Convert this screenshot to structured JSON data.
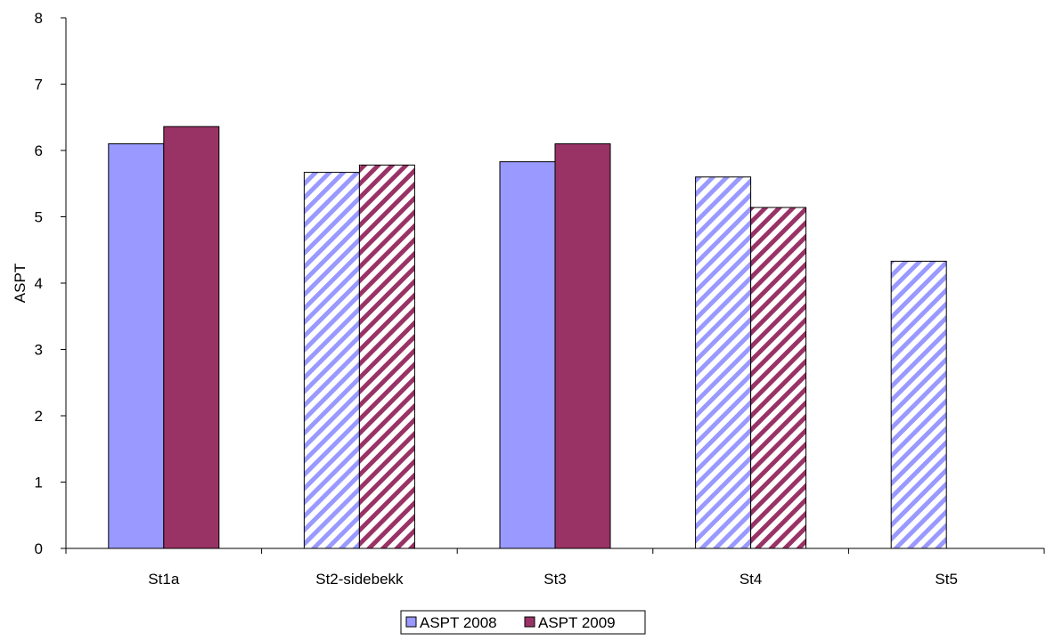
{
  "chart_data": {
    "type": "bar",
    "title": "",
    "xlabel": "",
    "ylabel": "ASPT",
    "ylim": [
      0,
      8
    ],
    "y_ticks": [
      0,
      1,
      2,
      3,
      4,
      5,
      6,
      7,
      8
    ],
    "grid": false,
    "legend_position": "bottom-center",
    "categories": [
      "St1a",
      "St2-sidebekk",
      "St3",
      "St4",
      "St5"
    ],
    "series": [
      {
        "name": "ASPT 2008",
        "color": "#9999ff",
        "values": [
          6.1,
          5.67,
          5.83,
          5.6,
          4.33
        ],
        "fill_styles": [
          "solid",
          "hatched",
          "solid",
          "hatched",
          "hatched"
        ]
      },
      {
        "name": "ASPT 2009",
        "color": "#993366",
        "values": [
          6.36,
          5.78,
          6.1,
          5.14,
          null
        ],
        "fill_styles": [
          "solid",
          "hatched",
          "solid",
          "hatched",
          "hatched"
        ]
      }
    ]
  }
}
